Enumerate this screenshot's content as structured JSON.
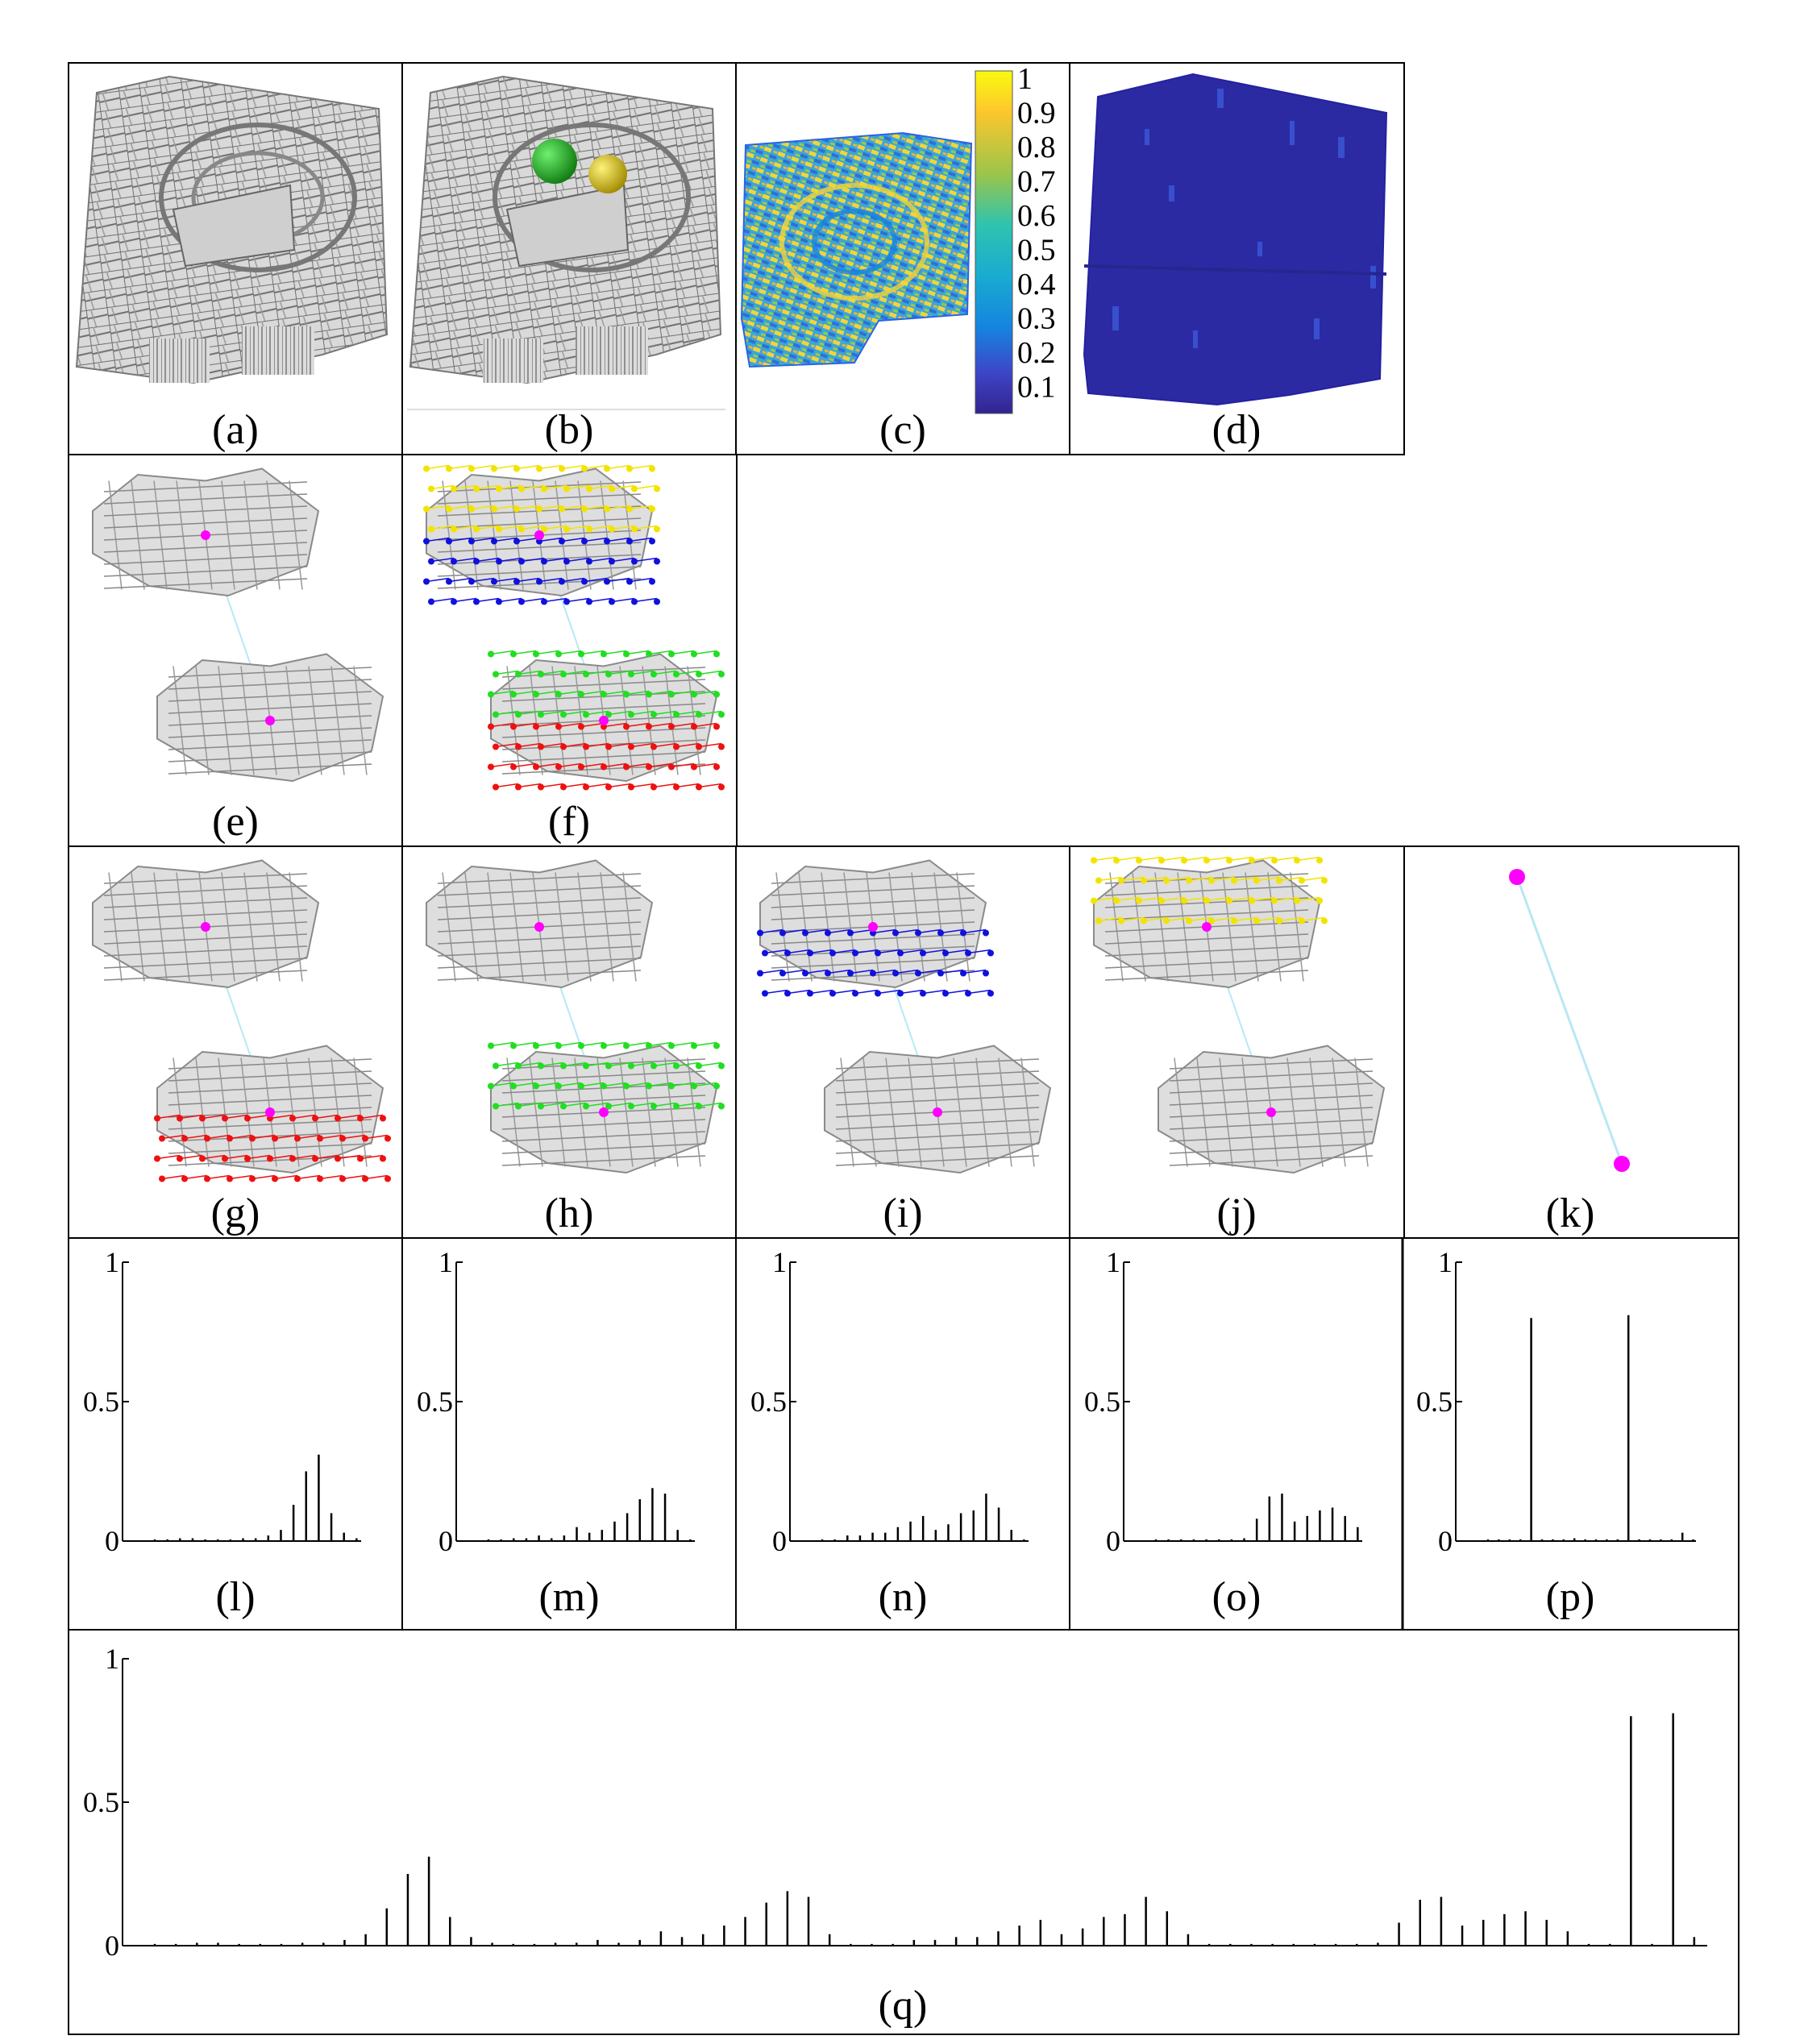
{
  "panels": {
    "a": {
      "caption": "(a)"
    },
    "b": {
      "caption": "(b)"
    },
    "c": {
      "caption": "(c)"
    },
    "d": {
      "caption": "(d)"
    },
    "e": {
      "caption": "(e)"
    },
    "f": {
      "caption": "(f)"
    },
    "g": {
      "caption": "(g)"
    },
    "h": {
      "caption": "(h)"
    },
    "i": {
      "caption": "(i)"
    },
    "j": {
      "caption": "(j)"
    },
    "k": {
      "caption": "(k)"
    }
  },
  "colorbar": {
    "labels": [
      "1",
      "0.9",
      "0.8",
      "0.7",
      "0.6",
      "0.5",
      "0.4",
      "0.3",
      "0.2",
      "0.1"
    ],
    "colors": [
      "#f9fb0e",
      "#fdc62d",
      "#e8b33a",
      "#9cc54a",
      "#45c5a0",
      "#19abd0",
      "#1584e0",
      "#2a63e6",
      "#3d46c8",
      "#33238f"
    ]
  },
  "neighborhood_colors": {
    "red": "#ee1111",
    "green": "#22dd22",
    "blue": "#1111dd",
    "yellow": "#f2e300",
    "center": "#ff00ff",
    "link": "#b8e8f5"
  },
  "chart_data": [
    {
      "panel": "l",
      "caption": "(l)",
      "type": "bar",
      "ylim": [
        0,
        1
      ],
      "yticks": [
        "0",
        "0.5",
        "1"
      ],
      "values": [
        0,
        0,
        0.01,
        0.01,
        0,
        0,
        0,
        0.01,
        0.01,
        0.02,
        0.04,
        0.13,
        0.25,
        0.31,
        0.1,
        0.03,
        0.01
      ]
    },
    {
      "panel": "m",
      "caption": "(m)",
      "type": "bar",
      "ylim": [
        0,
        1
      ],
      "yticks": [
        "0",
        "0.5",
        "1"
      ],
      "values": [
        0,
        0,
        0.01,
        0.01,
        0.02,
        0.01,
        0.02,
        0.05,
        0.03,
        0.04,
        0.07,
        0.1,
        0.15,
        0.19,
        0.17,
        0.04,
        0
      ]
    },
    {
      "panel": "n",
      "caption": "(n)",
      "type": "bar",
      "ylim": [
        0,
        1
      ],
      "yticks": [
        "0",
        "0.5",
        "1"
      ],
      "values": [
        0,
        0,
        0.02,
        0.02,
        0.03,
        0.03,
        0.05,
        0.07,
        0.09,
        0.04,
        0.06,
        0.1,
        0.11,
        0.17,
        0.12,
        0.04,
        0
      ]
    },
    {
      "panel": "o",
      "caption": "(o)",
      "type": "bar",
      "ylim": [
        0,
        1
      ],
      "yticks": [
        "0",
        "0.5",
        "1"
      ],
      "values": [
        0,
        0,
        0,
        0,
        0,
        0,
        0,
        0.01,
        0.08,
        0.16,
        0.17,
        0.07,
        0.09,
        0.11,
        0.12,
        0.09,
        0.05
      ]
    },
    {
      "panel": "p",
      "caption": "(p)",
      "type": "bar",
      "ylim": [
        0,
        1
      ],
      "yticks": [
        "0",
        "0.5",
        "1"
      ],
      "values": [
        0,
        0,
        0,
        0,
        0.8,
        0,
        0,
        0,
        0.01,
        0,
        0,
        0,
        0,
        0.81,
        0,
        0,
        0,
        0,
        0.03,
        0
      ]
    },
    {
      "panel": "q",
      "caption": "(q)",
      "type": "bar",
      "ylim": [
        0,
        1
      ],
      "yticks": [
        "0",
        "0.5",
        "1"
      ],
      "values": [
        0,
        0,
        0.01,
        0.01,
        0,
        0,
        0,
        0.01,
        0.01,
        0.02,
        0.04,
        0.13,
        0.25,
        0.31,
        0.1,
        0.03,
        0.01,
        0,
        0,
        0.01,
        0.01,
        0.02,
        0.01,
        0.02,
        0.05,
        0.03,
        0.04,
        0.07,
        0.1,
        0.15,
        0.19,
        0.17,
        0.04,
        0,
        0,
        0,
        0.02,
        0.02,
        0.03,
        0.03,
        0.05,
        0.07,
        0.09,
        0.04,
        0.06,
        0.1,
        0.11,
        0.17,
        0.12,
        0.04,
        0,
        0,
        0,
        0,
        0,
        0,
        0,
        0,
        0.01,
        0.08,
        0.16,
        0.17,
        0.07,
        0.09,
        0.11,
        0.12,
        0.09,
        0.05,
        0,
        0,
        0.8,
        0,
        0.81,
        0.03
      ]
    }
  ]
}
